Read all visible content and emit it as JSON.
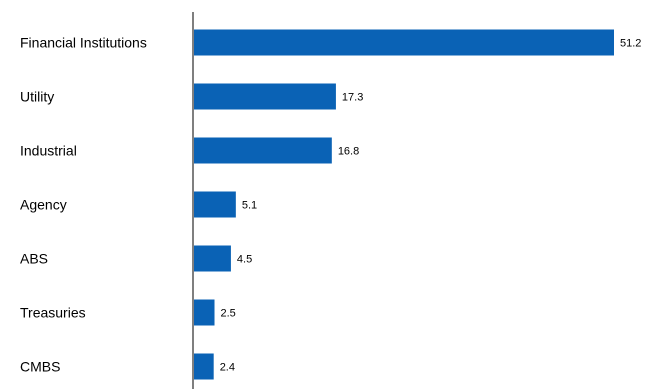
{
  "chart_data": {
    "type": "bar",
    "orientation": "horizontal",
    "categories": [
      "Financial Institutions",
      "Utility",
      "Industrial",
      "Agency",
      "ABS",
      "Treasuries",
      "CMBS"
    ],
    "values": [
      51.2,
      17.3,
      16.8,
      5.1,
      4.5,
      2.5,
      2.4
    ],
    "value_labels": [
      "51.2",
      "17.3",
      "16.8",
      "5.1",
      "4.5",
      "2.5",
      "2.4"
    ],
    "xlim": [
      0,
      52
    ],
    "grid": false,
    "bar_color": "#0a62b5",
    "axis_color": "#7f7f7f"
  }
}
